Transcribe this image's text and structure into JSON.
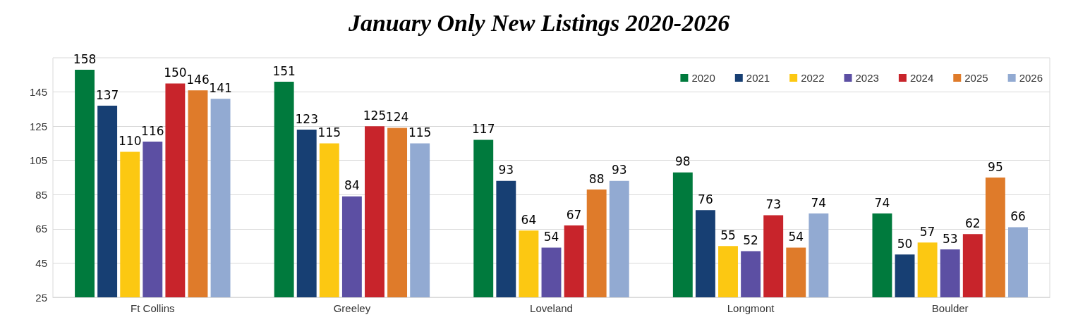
{
  "chart_data": {
    "type": "bar",
    "title": "January Only New Listings 2020-2026",
    "categories": [
      "Ft Collins",
      "Greeley",
      "Loveland",
      "Longmont",
      "Boulder"
    ],
    "series": [
      {
        "name": "2020",
        "color": "#007a3d",
        "values": [
          158,
          151,
          117,
          98,
          74
        ]
      },
      {
        "name": "2021",
        "color": "#173f73",
        "values": [
          137,
          123,
          93,
          76,
          50
        ]
      },
      {
        "name": "2022",
        "color": "#fcc812",
        "values": [
          110,
          115,
          64,
          55,
          57
        ]
      },
      {
        "name": "2023",
        "color": "#5c4fa3",
        "values": [
          116,
          84,
          54,
          52,
          53
        ]
      },
      {
        "name": "2024",
        "color": "#c8242b",
        "values": [
          150,
          125,
          67,
          73,
          62
        ]
      },
      {
        "name": "2025",
        "color": "#df7b2a",
        "values": [
          146,
          124,
          88,
          54,
          95
        ]
      },
      {
        "name": "2026",
        "color": "#92aad2",
        "values": [
          141,
          115,
          93,
          74,
          66
        ]
      }
    ],
    "ylim": [
      25,
      165
    ],
    "yticks": [
      25,
      45,
      65,
      85,
      105,
      125,
      145
    ],
    "grid": "y",
    "legend": "top right",
    "data_labels": true
  }
}
